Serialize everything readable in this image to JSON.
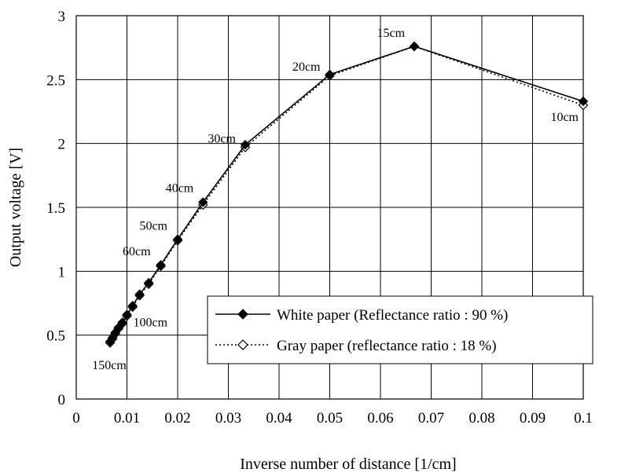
{
  "chart_data": {
    "type": "line",
    "title": "",
    "xlabel": "Inverse number of distance [1/cm]",
    "ylabel": "Output voltage [V]",
    "xlim": [
      0,
      0.1
    ],
    "ylim": [
      0,
      3
    ],
    "xticks": [
      0,
      0.01,
      0.02,
      0.03,
      0.04,
      0.05,
      0.06,
      0.07,
      0.08,
      0.09,
      0.1
    ],
    "xtick_labels": [
      "0",
      "0.01",
      "0.02",
      "0.03",
      "0.04",
      "0.05",
      "0.06",
      "0.07",
      "0.08",
      "0.09",
      "0.1"
    ],
    "yticks": [
      0,
      0.5,
      1,
      1.5,
      2,
      2.5,
      3
    ],
    "ytick_labels": [
      "0",
      "0.5",
      "1",
      "1.5",
      "2",
      "2.5",
      "3"
    ],
    "grid": true,
    "legend_position": "bottom-right",
    "series": [
      {
        "name": "White paper (Reflectance ratio : 90 %)",
        "style": "solid",
        "marker": "filled-diamond",
        "x": [
          0.00667,
          0.00714,
          0.00769,
          0.00833,
          0.00909,
          0.01,
          0.01111,
          0.0125,
          0.01429,
          0.01667,
          0.02,
          0.025,
          0.03333,
          0.05,
          0.06667,
          0.1
        ],
        "y": [
          0.45,
          0.48,
          0.52,
          0.56,
          0.6,
          0.66,
          0.73,
          0.82,
          0.91,
          1.05,
          1.25,
          1.54,
          1.99,
          2.54,
          2.76,
          2.33
        ]
      },
      {
        "name": "Gray paper (reflectance ratio : 18 %)",
        "style": "dotted",
        "marker": "hollow-diamond",
        "x": [
          0.00667,
          0.00714,
          0.00769,
          0.00833,
          0.00909,
          0.01,
          0.01111,
          0.0125,
          0.01429,
          0.01667,
          0.02,
          0.025,
          0.03333,
          0.05,
          0.06667,
          0.1
        ],
        "y": [
          0.44,
          0.47,
          0.51,
          0.55,
          0.59,
          0.65,
          0.72,
          0.81,
          0.9,
          1.04,
          1.24,
          1.52,
          1.97,
          2.53,
          2.76,
          2.3
        ]
      }
    ],
    "annotations": [
      {
        "text": "150cm",
        "x": 0.00667,
        "y": 0.45
      },
      {
        "text": "100cm",
        "x": 0.01,
        "y": 0.66
      },
      {
        "text": "60cm",
        "x": 0.01667,
        "y": 1.05
      },
      {
        "text": "50cm",
        "x": 0.02,
        "y": 1.25
      },
      {
        "text": "40cm",
        "x": 0.025,
        "y": 1.54
      },
      {
        "text": "30cm",
        "x": 0.03333,
        "y": 1.99
      },
      {
        "text": "20cm",
        "x": 0.05,
        "y": 2.54
      },
      {
        "text": "15cm",
        "x": 0.06667,
        "y": 2.76
      },
      {
        "text": "10cm",
        "x": 0.1,
        "y": 2.3
      }
    ]
  }
}
